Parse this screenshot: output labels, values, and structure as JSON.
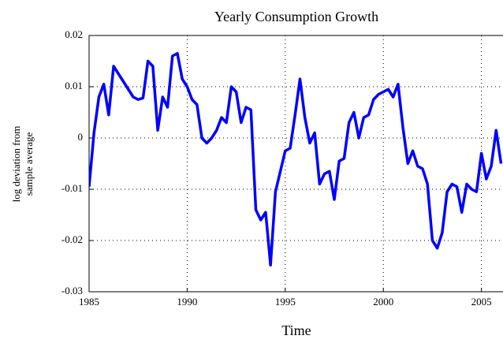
{
  "chart_data": {
    "type": "line",
    "title": "Yearly Consumption Growth",
    "xlabel": "Time",
    "ylabel": [
      "log deviation from",
      "sample average"
    ],
    "x": [
      1985,
      1985.25,
      1985.5,
      1985.75,
      1986,
      1986.25,
      1986.5,
      1986.75,
      1987,
      1987.25,
      1987.5,
      1987.75,
      1988,
      1988.25,
      1988.5,
      1988.75,
      1989,
      1989.25,
      1989.5,
      1989.75,
      1990,
      1990.25,
      1990.5,
      1990.75,
      1991,
      1991.25,
      1991.5,
      1991.75,
      1992,
      1992.25,
      1992.5,
      1992.75,
      1993,
      1993.25,
      1993.5,
      1993.75,
      1994,
      1994.25,
      1994.5,
      1994.75,
      1995,
      1995.25,
      1995.5,
      1995.75,
      1996,
      1996.25,
      1996.5,
      1996.75,
      1997,
      1997.25,
      1997.5,
      1997.75,
      1998,
      1998.25,
      1998.5,
      1998.75,
      1999,
      1999.25,
      1999.5,
      1999.75,
      2000,
      2000.25,
      2000.5,
      2000.75,
      2001,
      2001.25,
      2001.5,
      2001.75,
      2002,
      2002.25,
      2002.5,
      2002.75,
      2003,
      2003.25,
      2003.5,
      2003.75,
      2004,
      2004.25,
      2004.5,
      2004.75,
      2005,
      2005.25,
      2005.5,
      2005.75,
      2006
    ],
    "series": [
      {
        "color": "#0000ff",
        "values": [
          -0.0095,
          0.001,
          0.008,
          0.0105,
          0.0045,
          0.014,
          0.0125,
          0.011,
          0.0095,
          0.008,
          0.0075,
          0.0078,
          0.015,
          0.014,
          0.0015,
          0.008,
          0.006,
          0.016,
          0.0165,
          0.0115,
          0.01,
          0.0075,
          0.0065,
          0.0,
          -0.001,
          0.0,
          0.0015,
          0.004,
          0.003,
          0.01,
          0.009,
          0.003,
          0.006,
          0.0055,
          -0.014,
          -0.016,
          -0.0145,
          -0.0248,
          -0.0105,
          -0.0065,
          -0.0025,
          -0.002,
          0.0045,
          0.0115,
          0.004,
          -0.001,
          0.001,
          -0.009,
          -0.007,
          -0.0065,
          -0.012,
          -0.0045,
          -0.004,
          0.003,
          0.005,
          0.0,
          0.004,
          0.0045,
          0.0075,
          0.0085,
          0.009,
          0.0095,
          0.008,
          0.0105,
          0.002,
          -0.005,
          -0.0025,
          -0.0055,
          -0.006,
          -0.009,
          -0.02,
          -0.0215,
          -0.0185,
          -0.0105,
          -0.009,
          -0.0095,
          -0.0145,
          -0.009,
          -0.01,
          -0.0105,
          -0.003,
          -0.008,
          -0.0055,
          0.0015,
          -0.005
        ]
      }
    ],
    "xlim": [
      1985,
      2006.1
    ],
    "xticks": [
      1985,
      1990,
      1995,
      2000,
      2005
    ],
    "ylim": [
      -0.03,
      0.02
    ],
    "yticks": [
      -0.03,
      -0.02,
      -0.01,
      0,
      0.01,
      0.02
    ],
    "grid": true
  }
}
